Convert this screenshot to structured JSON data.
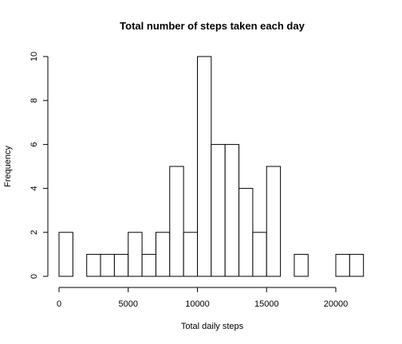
{
  "chart_data": {
    "type": "bar",
    "title": "Total number of steps taken each day",
    "xlabel": "Total daily steps",
    "ylabel": "Frequency",
    "bin_width": 1000,
    "bins": [
      {
        "start": 0,
        "end": 1000,
        "count": 2
      },
      {
        "start": 1000,
        "end": 2000,
        "count": 0
      },
      {
        "start": 2000,
        "end": 3000,
        "count": 1
      },
      {
        "start": 3000,
        "end": 4000,
        "count": 1
      },
      {
        "start": 4000,
        "end": 5000,
        "count": 1
      },
      {
        "start": 5000,
        "end": 6000,
        "count": 2
      },
      {
        "start": 6000,
        "end": 7000,
        "count": 1
      },
      {
        "start": 7000,
        "end": 8000,
        "count": 2
      },
      {
        "start": 8000,
        "end": 9000,
        "count": 5
      },
      {
        "start": 9000,
        "end": 10000,
        "count": 2
      },
      {
        "start": 10000,
        "end": 11000,
        "count": 10
      },
      {
        "start": 11000,
        "end": 12000,
        "count": 6
      },
      {
        "start": 12000,
        "end": 13000,
        "count": 6
      },
      {
        "start": 13000,
        "end": 14000,
        "count": 4
      },
      {
        "start": 14000,
        "end": 15000,
        "count": 2
      },
      {
        "start": 15000,
        "end": 16000,
        "count": 5
      },
      {
        "start": 16000,
        "end": 17000,
        "count": 0
      },
      {
        "start": 17000,
        "end": 18000,
        "count": 1
      },
      {
        "start": 18000,
        "end": 19000,
        "count": 0
      },
      {
        "start": 19000,
        "end": 20000,
        "count": 0
      },
      {
        "start": 20000,
        "end": 21000,
        "count": 1
      },
      {
        "start": 21000,
        "end": 22000,
        "count": 1
      }
    ],
    "x_ticks": [
      "0",
      "5000",
      "10000",
      "15000",
      "20000"
    ],
    "y_ticks": [
      "0",
      "2",
      "4",
      "6",
      "8",
      "10"
    ],
    "xlim": [
      0,
      22000
    ],
    "ylim": [
      0,
      10
    ],
    "grid": false
  }
}
